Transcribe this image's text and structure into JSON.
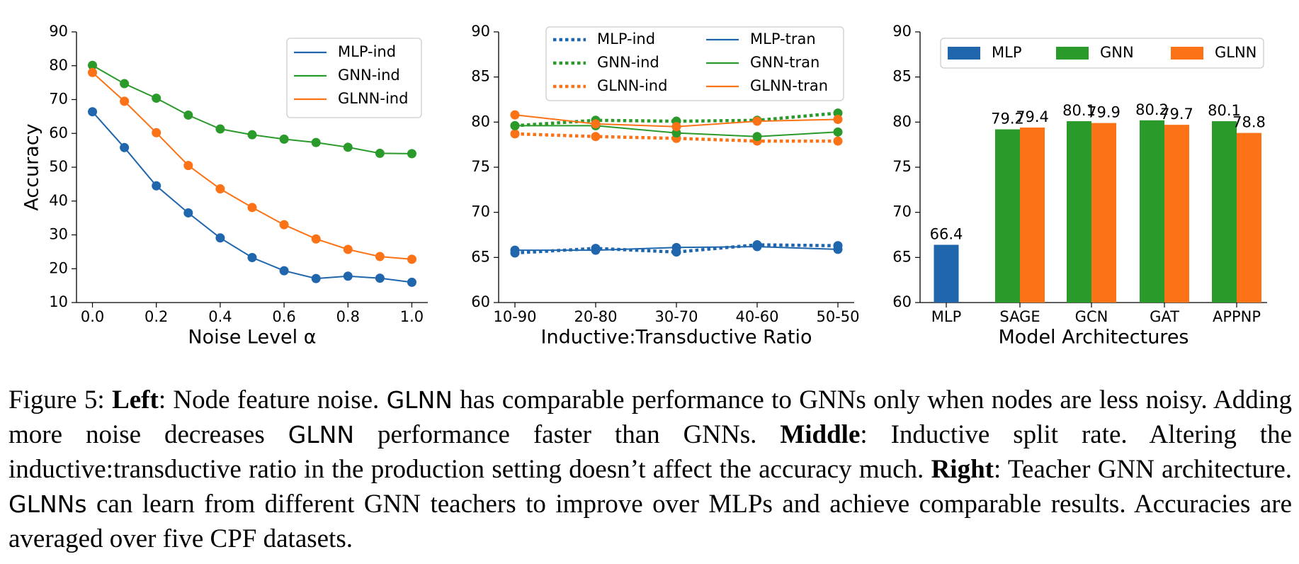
{
  "colors": {
    "blue": "#1f66ad",
    "green": "#2a9a2a",
    "orange": "#fb7316"
  },
  "chart_data": [
    {
      "type": "line",
      "title": "",
      "xlabel": "Noise Level α",
      "ylabel": "Accuracy",
      "xlim": [
        -0.05,
        1.05
      ],
      "ylim": [
        10,
        90
      ],
      "xticks": [
        0.0,
        0.2,
        0.4,
        0.6,
        0.8,
        1.0
      ],
      "xtick_labels": [
        "0.0",
        "0.2",
        "0.4",
        "0.6",
        "0.8",
        "1.0"
      ],
      "yticks": [
        10,
        20,
        30,
        40,
        50,
        60,
        70,
        80,
        90
      ],
      "legend_position": "top-right",
      "x": [
        0.0,
        0.1,
        0.2,
        0.3,
        0.4,
        0.5,
        0.6,
        0.7,
        0.8,
        0.9,
        1.0
      ],
      "series": [
        {
          "name": "MLP-ind",
          "color": "#1f66ad",
          "dashed": false,
          "values": [
            66.4,
            55.8,
            44.5,
            36.5,
            29.1,
            23.3,
            19.4,
            17.1,
            17.8,
            17.2,
            16.0
          ]
        },
        {
          "name": "GNN-ind",
          "color": "#2a9a2a",
          "dashed": false,
          "values": [
            80.1,
            74.7,
            70.4,
            65.4,
            61.3,
            59.6,
            58.3,
            57.3,
            55.9,
            54.1,
            54.0
          ]
        },
        {
          "name": "GLNN-ind",
          "color": "#fb7316",
          "dashed": false,
          "values": [
            78.0,
            69.5,
            60.2,
            50.5,
            43.6,
            38.1,
            33.0,
            28.8,
            25.7,
            23.6,
            22.8
          ]
        }
      ]
    },
    {
      "type": "line",
      "title": "",
      "xlabel": "Inductive:Transductive Ratio",
      "ylabel": "",
      "ylim": [
        60,
        90
      ],
      "categories": [
        "10-90",
        "20-80",
        "30-70",
        "40-60",
        "50-50"
      ],
      "yticks": [
        60,
        65,
        70,
        75,
        80,
        85,
        90
      ],
      "legend_position": "top",
      "legend_columns": 2,
      "series": [
        {
          "name": "MLP-ind",
          "color": "#1f66ad",
          "dashed": true,
          "values": [
            65.5,
            66.0,
            65.6,
            66.4,
            66.3
          ]
        },
        {
          "name": "GNN-ind",
          "color": "#2a9a2a",
          "dashed": true,
          "values": [
            79.6,
            80.2,
            80.1,
            80.2,
            81.0
          ]
        },
        {
          "name": "GLNN-ind",
          "color": "#fb7316",
          "dashed": true,
          "values": [
            78.7,
            78.4,
            78.2,
            77.9,
            77.9
          ]
        },
        {
          "name": "MLP-tran",
          "color": "#1f66ad",
          "dashed": false,
          "values": [
            65.8,
            65.8,
            66.1,
            66.2,
            65.9
          ]
        },
        {
          "name": "GNN-tran",
          "color": "#2a9a2a",
          "dashed": false,
          "values": [
            79.6,
            79.6,
            78.8,
            78.4,
            78.9
          ]
        },
        {
          "name": "GLNN-tran",
          "color": "#fb7316",
          "dashed": false,
          "values": [
            80.8,
            79.8,
            79.5,
            80.1,
            80.3
          ]
        }
      ]
    },
    {
      "type": "bar",
      "title": "",
      "xlabel": "Model Architectures",
      "ylabel": "",
      "ylim": [
        60,
        90
      ],
      "categories": [
        "MLP",
        "SAGE",
        "GCN",
        "GAT",
        "APPNP"
      ],
      "yticks": [
        60,
        65,
        70,
        75,
        80,
        85,
        90
      ],
      "legend_position": "top",
      "series": [
        {
          "name": "MLP",
          "color": "#1f66ad",
          "values": [
            66.4,
            null,
            null,
            null,
            null
          ]
        },
        {
          "name": "GNN",
          "color": "#2a9a2a",
          "values": [
            null,
            79.2,
            80.1,
            80.2,
            80.1
          ]
        },
        {
          "name": "GLNN",
          "color": "#fb7316",
          "values": [
            null,
            79.4,
            79.9,
            79.7,
            78.8
          ]
        }
      ]
    }
  ],
  "caption": {
    "fig": "Figure 5: ",
    "left_bold": "Left",
    "s1": ": Node feature noise. ",
    "glnn1": "GLNN",
    "s2": " has comparable performance to GNNs only when nodes are less noisy. Adding more noise decreases ",
    "glnn2": "GLNN",
    "s3": " performance faster than GNNs. ",
    "middle_bold": "Middle",
    "s4": ": Inductive split rate. Altering the inductive:transductive ratio in the production setting doesn’t affect the accuracy much. ",
    "right_bold": "Right",
    "s5": ": Teacher GNN architecture. ",
    "glnn3": "GLNNs",
    "s6": " can learn from different GNN teachers to improve over MLPs and achieve comparable results. Accuracies are averaged over five CPF datasets."
  }
}
